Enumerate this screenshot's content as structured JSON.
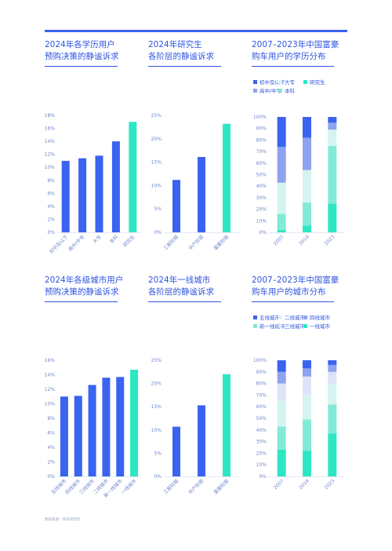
{
  "palette": {
    "accent": "#3a63f0",
    "bar_blue": "#3a63f0",
    "bar_green": "#2ee6c4",
    "light1": "#8ea3ef",
    "light2": "#dde3f8",
    "cyan1": "#d4f5ef",
    "cyan2": "#82ead7",
    "cyan3": "#2ee6c4",
    "text": "#2f55e0"
  },
  "panels": [
    {
      "title1": "2024年各学历用户",
      "title2": "预购决策的静谧诉求"
    },
    {
      "title1": "2024年研究生",
      "title2": "各阶层的静谧诉求"
    },
    {
      "title1": "2007–2023年中国富豪",
      "title2": "购车用户的学历分布"
    },
    {
      "title1": "2024年各级城市用户",
      "title2": "预购决策的静谧诉求"
    },
    {
      "title1": "2024年一线城市",
      "title2": "各阶层的静谧诉求"
    },
    {
      "title1": "2007–2023年中国富豪",
      "title2": "购车用户的城市分布"
    }
  ],
  "source": "数据来源：易车研究院",
  "chart_data": [
    {
      "type": "bar",
      "categories": [
        "初中及以下",
        "高中/中专",
        "大专",
        "本科",
        "研究生"
      ],
      "values": [
        11.0,
        11.4,
        11.8,
        14.0,
        17.0
      ],
      "highlight": [
        false,
        false,
        false,
        false,
        true
      ],
      "yticks": [
        "0%",
        "2%",
        "4%",
        "6%",
        "8%",
        "10%",
        "12%",
        "14%",
        "16%",
        "18%"
      ],
      "ylim": [
        0,
        18
      ]
    },
    {
      "type": "bar",
      "categories": [
        "工薪阶层",
        "中产阶层",
        "富豪阶层"
      ],
      "values": [
        11.2,
        16.1,
        23.2
      ],
      "highlight": [
        false,
        false,
        true
      ],
      "yticks": [
        "0%",
        "5%",
        "10%",
        "15%",
        "20%",
        "25%"
      ],
      "ylim": [
        0,
        25
      ]
    },
    {
      "type": "bar",
      "stacked": true,
      "categories": [
        "2007",
        "2014",
        "2023"
      ],
      "series": [
        {
          "name": "研究生",
          "color": "#2ee6c4",
          "values": [
            2,
            6,
            25
          ]
        },
        {
          "name": "本科",
          "color": "#82ead7",
          "values": [
            14,
            20,
            50
          ]
        },
        {
          "name": "大专",
          "color": "#d4f5ef",
          "values": [
            27,
            28,
            14
          ]
        },
        {
          "name": "高中/中专",
          "color": "#8ea3ef",
          "values": [
            31,
            28,
            6
          ]
        },
        {
          "name": "初中及以下",
          "color": "#3a63f0",
          "values": [
            26,
            18,
            5
          ]
        }
      ],
      "legend": [
        [
          "初中及以下",
          "#3a63f0"
        ],
        [
          "大专",
          "#d4f5ef"
        ],
        [
          "研究生",
          "#2ee6c4"
        ],
        [
          "高中/中专",
          "#8ea3ef"
        ],
        [
          "本科",
          "#82ead7"
        ]
      ],
      "yticks": [
        "0%",
        "10%",
        "20%",
        "30%",
        "40%",
        "50%",
        "60%",
        "70%",
        "80%",
        "90%",
        "100%"
      ],
      "ylim": [
        0,
        100
      ]
    },
    {
      "type": "bar",
      "categories": [
        "五线城市",
        "四线城市",
        "三线城市",
        "二线城市",
        "新一线城市",
        "一线城市"
      ],
      "values": [
        11.0,
        11.1,
        12.6,
        13.6,
        13.7,
        14.7
      ],
      "highlight": [
        false,
        false,
        false,
        false,
        false,
        true
      ],
      "yticks": [
        "0%",
        "2%",
        "4%",
        "6%",
        "8%",
        "10%",
        "12%",
        "14%",
        "16%"
      ],
      "ylim": [
        0,
        16
      ]
    },
    {
      "type": "bar",
      "categories": [
        "工薪阶层",
        "中产阶层",
        "富豪阶层"
      ],
      "values": [
        10.7,
        15.3,
        22.0
      ],
      "highlight": [
        false,
        false,
        true
      ],
      "yticks": [
        "0%",
        "5%",
        "10%",
        "15%",
        "20%",
        "25%"
      ],
      "ylim": [
        0,
        25
      ]
    },
    {
      "type": "bar",
      "stacked": true,
      "categories": [
        "2007",
        "2014",
        "2023"
      ],
      "series": [
        {
          "name": "一线城市",
          "color": "#2ee6c4",
          "values": [
            23,
            22,
            37
          ]
        },
        {
          "name": "新一线城市",
          "color": "#82ead7",
          "values": [
            20,
            27,
            25
          ]
        },
        {
          "name": "二线城市",
          "color": "#d4f5ef",
          "values": [
            22,
            21,
            18
          ]
        },
        {
          "name": "三线城市",
          "color": "#dde3f8",
          "values": [
            15,
            16,
            10
          ]
        },
        {
          "name": "四线城市",
          "color": "#8ea3ef",
          "values": [
            10,
            7,
            6
          ]
        },
        {
          "name": "五线城市",
          "color": "#3a63f0",
          "values": [
            10,
            7,
            4
          ]
        }
      ],
      "legend": [
        [
          "五线城市",
          "#3a63f0"
        ],
        [
          "二线城市",
          "#d4f5ef"
        ],
        [
          "四线城市",
          "#8ea3ef"
        ],
        [
          "新一线城市",
          "#82ead7"
        ],
        [
          "三线城市",
          "#dde3f8"
        ],
        [
          "一线城市",
          "#2ee6c4"
        ]
      ],
      "yticks": [
        "0%",
        "10%",
        "20%",
        "30%",
        "40%",
        "50%",
        "60%",
        "70%",
        "80%",
        "90%",
        "100%"
      ],
      "ylim": [
        0,
        100
      ]
    }
  ]
}
